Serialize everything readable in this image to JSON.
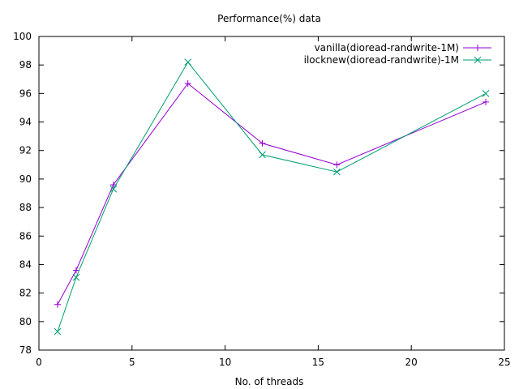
{
  "chart_data": {
    "type": "line",
    "title": "Performance(%) data",
    "xlabel": "No. of threads",
    "ylabel": "",
    "xlim": [
      0,
      25
    ],
    "ylim": [
      78,
      100
    ],
    "xticks": [
      0,
      5,
      10,
      15,
      20,
      25
    ],
    "yticks": [
      78,
      80,
      82,
      84,
      86,
      88,
      90,
      92,
      94,
      96,
      98,
      100
    ],
    "grid": false,
    "legend_position": "top-right",
    "series": [
      {
        "name": "vanilla(dioread-randwrite-1M)",
        "color": "#9400d3",
        "marker": "plus",
        "x": [
          1,
          2,
          4,
          8,
          12,
          16,
          24
        ],
        "y": [
          81.2,
          83.6,
          89.6,
          96.7,
          92.5,
          91.0,
          95.4
        ]
      },
      {
        "name": "ilocknew(dioread-randwrite)-1M",
        "color": "#009e73",
        "marker": "cross",
        "x": [
          1,
          2,
          4,
          8,
          12,
          16,
          24
        ],
        "y": [
          79.3,
          83.1,
          89.3,
          98.2,
          91.7,
          90.5,
          96.0
        ]
      }
    ]
  }
}
